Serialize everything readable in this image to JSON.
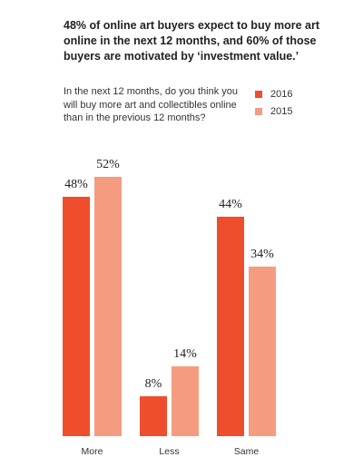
{
  "title": "48% of online art buyers expect to buy more art online in the next 12 months, and 60% of those buyers are motivated by ‘investment value.’",
  "question": "In the next 12 months, do you think you will buy more art and collectibles online than in the previous 12 months?",
  "chart_data": {
    "type": "bar",
    "categories": [
      "More",
      "Less",
      "Same"
    ],
    "series": [
      {
        "name": "2016",
        "color": "#ee4e2c",
        "values": [
          48,
          8,
          44
        ],
        "labels": [
          "48%",
          "8%",
          "44%"
        ]
      },
      {
        "name": "2015",
        "color": "#f59c80",
        "values": [
          52,
          14,
          34
        ],
        "labels": [
          "52%",
          "14%",
          "34%"
        ]
      }
    ],
    "ylim": [
      0,
      60
    ],
    "grid": false,
    "legend_position": "top-right"
  }
}
